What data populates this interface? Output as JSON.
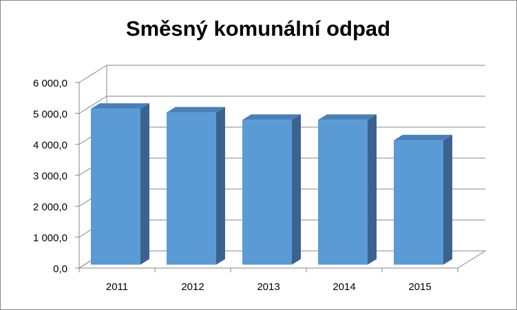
{
  "chart_data": {
    "type": "bar3d",
    "title": "Směsný komunální odpad",
    "categories": [
      "2011",
      "2012",
      "2013",
      "2014",
      "2015"
    ],
    "values": [
      5040,
      4920,
      4680,
      4680,
      4020
    ],
    "color": "#5b9bd5",
    "ylim": [
      0,
      6000
    ],
    "yticks": [
      {
        "value": 0,
        "label": "0,0"
      },
      {
        "value": 1000,
        "label": "1 000,0"
      },
      {
        "value": 2000,
        "label": "2 000,0"
      },
      {
        "value": 3000,
        "label": "3 000,0"
      },
      {
        "value": 4000,
        "label": "4 000,0"
      },
      {
        "value": 5000,
        "label": "5 000,0"
      },
      {
        "value": 6000,
        "label": "6 000,0"
      }
    ],
    "grid": true
  }
}
